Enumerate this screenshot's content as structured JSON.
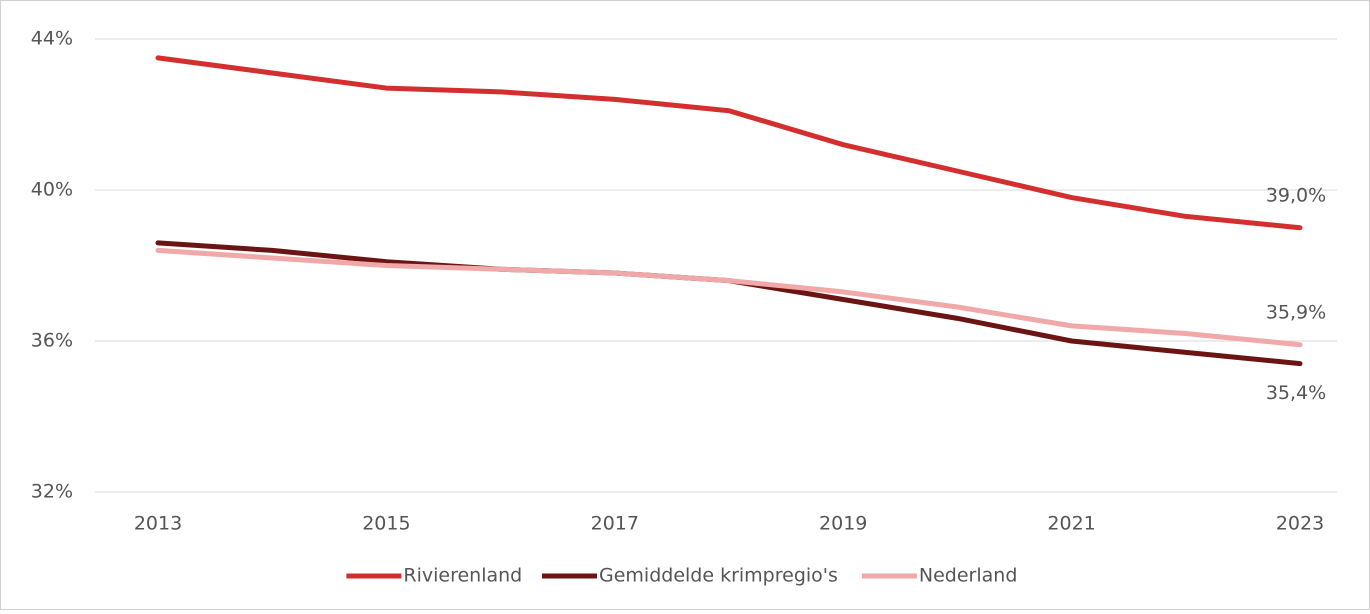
{
  "chart_data": {
    "type": "line",
    "categories": [
      "2013",
      null,
      "2015",
      null,
      "2017",
      null,
      "2019",
      null,
      "2021",
      null,
      "2023"
    ],
    "ylim": [
      32,
      44
    ],
    "yticks": [
      {
        "value": 32,
        "label": "32%"
      },
      {
        "value": 36,
        "label": "36%"
      },
      {
        "value": 40,
        "label": "40%"
      },
      {
        "value": 44,
        "label": "44%"
      }
    ],
    "grid": true,
    "legend": "bottom",
    "series": [
      {
        "name": "Rivierenland",
        "color": "#d32f2f",
        "values": [
          43.5,
          43.1,
          42.7,
          42.6,
          42.4,
          42.1,
          41.2,
          40.5,
          39.8,
          39.3,
          39.0
        ],
        "value_labels": [
          null,
          null,
          null,
          null,
          null,
          null,
          null,
          null,
          null,
          null,
          "39,0%"
        ]
      },
      {
        "name": "Gemiddelde krimpregio's",
        "color": "#6b1414",
        "values": [
          38.6,
          38.4,
          38.1,
          37.9,
          37.8,
          37.6,
          37.1,
          36.6,
          36.0,
          35.7,
          35.4
        ],
        "value_labels": [
          null,
          null,
          null,
          null,
          null,
          null,
          null,
          null,
          null,
          null,
          "35,4%"
        ]
      },
      {
        "name": "Nederland",
        "color": "#f0a8a8",
        "values": [
          38.4,
          38.2,
          38.0,
          37.9,
          37.8,
          37.6,
          37.3,
          36.9,
          36.4,
          36.2,
          35.9
        ],
        "value_labels": [
          null,
          null,
          null,
          null,
          null,
          null,
          null,
          null,
          null,
          null,
          "35,9%"
        ]
      }
    ]
  }
}
